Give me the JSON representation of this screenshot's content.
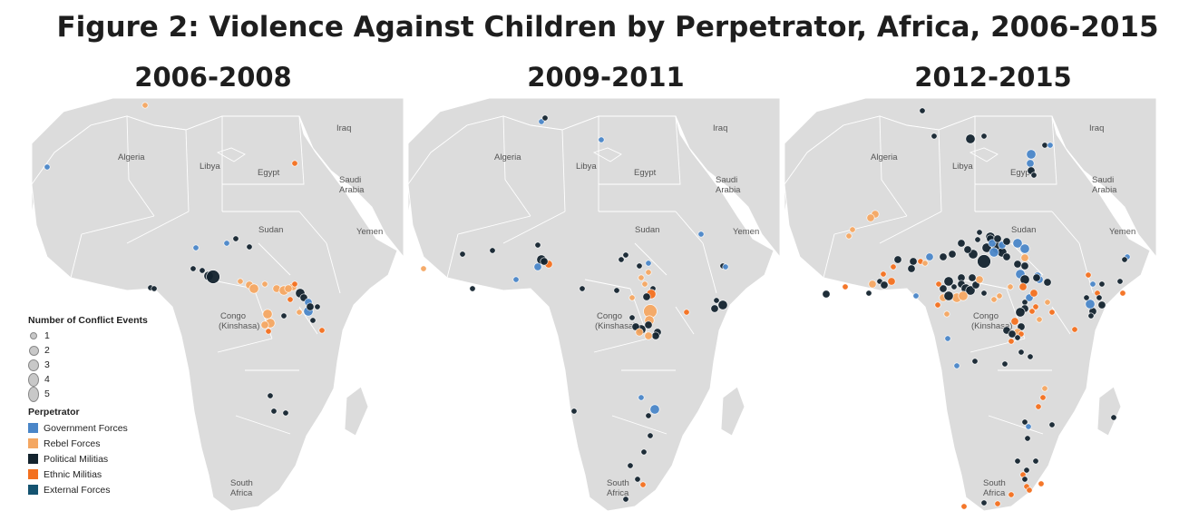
{
  "title": "Figure 2: Violence Against Children by Perpetrator, Africa, 2006-2015",
  "panels": [
    {
      "label": "2006-2008"
    },
    {
      "label": "2009-2011"
    },
    {
      "label": "2012-2015"
    }
  ],
  "map_labels": {
    "algeria": "Algeria",
    "libya": "Libya",
    "egypt": "Egypt",
    "iraq": "Iraq",
    "saudi1": "Saudi",
    "saudi2": "Arabia",
    "sudan": "Sudan",
    "yemen": "Yemen",
    "congo1": "Congo",
    "congo2": "(Kinshasa)",
    "southafrica1": "South",
    "southafrica2": "Africa"
  },
  "legend": {
    "size_title": "Number of Conflict Events",
    "sizes": [
      {
        "label": "1"
      },
      {
        "label": "2"
      },
      {
        "label": "3"
      },
      {
        "label": "4"
      },
      {
        "label": "5"
      }
    ],
    "perp_title": "Perpetrator",
    "perpetrators": [
      {
        "key": "gov",
        "label": "Government Forces",
        "color": "#4a86c8"
      },
      {
        "key": "reb",
        "label": "Rebel Forces",
        "color": "#f4a762"
      },
      {
        "key": "pol",
        "label": "Political Militias",
        "color": "#13232e"
      },
      {
        "key": "eth",
        "label": "Ethnic Militias",
        "color": "#f3701f"
      },
      {
        "key": "ext",
        "label": "External Forces",
        "color": "#145370"
      }
    ]
  },
  "points": [
    [
      [
        130,
        8,
        "reb",
        1
      ],
      [
        22,
        76,
        "gov",
        1
      ],
      [
        295,
        72,
        "eth",
        1
      ],
      [
        186,
        165,
        "gov",
        1
      ],
      [
        220,
        160,
        "gov",
        1
      ],
      [
        230,
        155,
        "pol",
        1
      ],
      [
        245,
        164,
        "pol",
        1
      ],
      [
        183,
        188,
        "pol",
        1
      ],
      [
        193,
        190,
        "pol",
        1
      ],
      [
        200,
        196,
        "pol",
        3
      ],
      [
        205,
        197,
        "pol",
        5
      ],
      [
        136,
        209,
        "pol",
        1
      ],
      [
        140,
        210,
        "pol",
        1
      ],
      [
        235,
        202,
        "reb",
        1
      ],
      [
        245,
        206,
        "reb",
        2
      ],
      [
        250,
        210,
        "reb",
        3
      ],
      [
        262,
        205,
        "reb",
        1
      ],
      [
        275,
        210,
        "reb",
        2
      ],
      [
        283,
        212,
        "reb",
        3
      ],
      [
        293,
        208,
        "reb",
        2
      ],
      [
        288,
        210,
        "reb",
        2
      ],
      [
        301,
        215,
        "pol",
        3
      ],
      [
        305,
        220,
        "pol",
        2
      ],
      [
        310,
        225,
        "gov",
        2
      ],
      [
        315,
        245,
        "pol",
        1
      ],
      [
        310,
        235,
        "gov",
        3
      ],
      [
        300,
        236,
        "reb",
        1
      ],
      [
        312,
        230,
        "pol",
        2
      ],
      [
        295,
        205,
        "eth",
        1
      ],
      [
        290,
        222,
        "eth",
        1
      ],
      [
        265,
        238,
        "reb",
        3
      ],
      [
        268,
        248,
        "reb",
        3
      ],
      [
        262,
        250,
        "reb",
        2
      ],
      [
        283,
        240,
        "pol",
        1
      ],
      [
        325,
        256,
        "eth",
        1
      ],
      [
        320,
        230,
        "pol",
        1
      ],
      [
        268,
        328,
        "pol",
        1
      ],
      [
        272,
        345,
        "pol",
        1
      ],
      [
        285,
        347,
        "pol",
        1
      ],
      [
        266,
        257,
        "eth",
        1
      ]
    ],
    [
      [
        152,
        26,
        "gov",
        1
      ],
      [
        218,
        46,
        "gov",
        1
      ],
      [
        65,
        172,
        "pol",
        1
      ],
      [
        98,
        168,
        "pol",
        1
      ],
      [
        148,
        162,
        "pol",
        1
      ],
      [
        152,
        178,
        "pol",
        3
      ],
      [
        148,
        186,
        "gov",
        2
      ],
      [
        160,
        183,
        "eth",
        2
      ],
      [
        155,
        180,
        "pol",
        2
      ],
      [
        124,
        200,
        "gov",
        1
      ],
      [
        22,
        188,
        "reb",
        1
      ],
      [
        76,
        210,
        "pol",
        1
      ],
      [
        245,
        173,
        "pol",
        1
      ],
      [
        240,
        178,
        "pol",
        1
      ],
      [
        260,
        185,
        "pol",
        1
      ],
      [
        270,
        182,
        "gov",
        1
      ],
      [
        328,
        150,
        "gov",
        1
      ],
      [
        352,
        185,
        "pol",
        1
      ],
      [
        355,
        186,
        "gov",
        1
      ],
      [
        262,
        198,
        "reb",
        1
      ],
      [
        270,
        192,
        "reb",
        1
      ],
      [
        266,
        205,
        "reb",
        1
      ],
      [
        275,
        210,
        "pol",
        1
      ],
      [
        273,
        216,
        "eth",
        3
      ],
      [
        268,
        219,
        "pol",
        2
      ],
      [
        252,
        220,
        "reb",
        1
      ],
      [
        235,
        212,
        "pol",
        1
      ],
      [
        197,
        210,
        "pol",
        1
      ],
      [
        272,
        235,
        "reb",
        5
      ],
      [
        271,
        245,
        "reb",
        3
      ],
      [
        270,
        250,
        "pol",
        2
      ],
      [
        262,
        255,
        "pol",
        3
      ],
      [
        256,
        252,
        "pol",
        2
      ],
      [
        280,
        258,
        "pol",
        2
      ],
      [
        278,
        262,
        "pol",
        2
      ],
      [
        270,
        262,
        "reb",
        2
      ],
      [
        260,
        258,
        "reb",
        2
      ],
      [
        252,
        242,
        "pol",
        1
      ],
      [
        312,
        236,
        "eth",
        1
      ],
      [
        343,
        232,
        "pol",
        2
      ],
      [
        352,
        228,
        "pol",
        3
      ],
      [
        345,
        223,
        "pol",
        1
      ],
      [
        262,
        330,
        "gov",
        1
      ],
      [
        277,
        343,
        "gov",
        3
      ],
      [
        270,
        350,
        "pol",
        1
      ],
      [
        272,
        372,
        "pol",
        1
      ],
      [
        188,
        345,
        "pol",
        1
      ],
      [
        265,
        390,
        "pol",
        1
      ],
      [
        250,
        405,
        "pol",
        1
      ],
      [
        258,
        420,
        "pol",
        1
      ],
      [
        264,
        426,
        "eth",
        1
      ],
      [
        245,
        442,
        "pol",
        1
      ],
      [
        156,
        22,
        "pol",
        1
      ]
    ],
    [
      [
        157,
        14,
        "pol",
        1
      ],
      [
        170,
        42,
        "pol",
        1
      ],
      [
        210,
        45,
        "pol",
        3
      ],
      [
        225,
        42,
        "pol",
        1
      ],
      [
        292,
        52,
        "pol",
        1
      ],
      [
        277,
        62,
        "gov",
        3
      ],
      [
        276,
        72,
        "gov",
        2
      ],
      [
        277,
        80,
        "pol",
        2
      ],
      [
        280,
        85,
        "pol",
        1
      ],
      [
        298,
        52,
        "gov",
        1
      ],
      [
        105,
        128,
        "reb",
        2
      ],
      [
        100,
        132,
        "reb",
        2
      ],
      [
        80,
        145,
        "reb",
        1
      ],
      [
        76,
        152,
        "reb",
        1
      ],
      [
        220,
        148,
        "pol",
        1
      ],
      [
        232,
        153,
        "pol",
        3
      ],
      [
        218,
        156,
        "pol",
        1
      ],
      [
        228,
        165,
        "pol",
        3
      ],
      [
        240,
        165,
        "pol",
        4
      ],
      [
        245,
        170,
        "pol",
        3
      ],
      [
        225,
        180,
        "pol",
        5
      ],
      [
        213,
        172,
        "pol",
        3
      ],
      [
        207,
        167,
        "pol",
        2
      ],
      [
        200,
        160,
        "pol",
        2
      ],
      [
        190,
        172,
        "pol",
        2
      ],
      [
        180,
        175,
        "pol",
        2
      ],
      [
        165,
        175,
        "gov",
        2
      ],
      [
        155,
        180,
        "eth",
        1
      ],
      [
        160,
        182,
        "reb",
        1
      ],
      [
        147,
        180,
        "pol",
        2
      ],
      [
        145,
        188,
        "pol",
        2
      ],
      [
        130,
        178,
        "pol",
        2
      ],
      [
        125,
        186,
        "eth",
        1
      ],
      [
        114,
        194,
        "eth",
        1
      ],
      [
        123,
        202,
        "eth",
        2
      ],
      [
        110,
        202,
        "pol",
        1
      ],
      [
        102,
        205,
        "reb",
        2
      ],
      [
        115,
        206,
        "pol",
        2
      ],
      [
        51,
        216,
        "pol",
        2
      ],
      [
        72,
        208,
        "eth",
        1
      ],
      [
        98,
        215,
        "pol",
        1
      ],
      [
        232,
        155,
        "pol",
        2
      ],
      [
        234,
        160,
        "gov",
        2
      ],
      [
        240,
        155,
        "pol",
        2
      ],
      [
        245,
        162,
        "gov",
        2
      ],
      [
        250,
        158,
        "pol",
        2
      ],
      [
        236,
        170,
        "gov",
        3
      ],
      [
        250,
        175,
        "pol",
        2
      ],
      [
        262,
        160,
        "gov",
        3
      ],
      [
        270,
        166,
        "gov",
        3
      ],
      [
        270,
        176,
        "reb",
        2
      ],
      [
        262,
        183,
        "pol",
        2
      ],
      [
        270,
        185,
        "pol",
        2
      ],
      [
        265,
        194,
        "gov",
        3
      ],
      [
        270,
        200,
        "pol",
        3
      ],
      [
        268,
        208,
        "eth",
        2
      ],
      [
        275,
        220,
        "gov",
        2
      ],
      [
        284,
        196,
        "gov",
        2
      ],
      [
        286,
        200,
        "gov",
        2
      ],
      [
        283,
        198,
        "pol",
        2
      ],
      [
        295,
        203,
        "pol",
        2
      ],
      [
        280,
        215,
        "eth",
        2
      ],
      [
        270,
        225,
        "pol",
        1
      ],
      [
        200,
        198,
        "pol",
        2
      ],
      [
        186,
        202,
        "pol",
        3
      ],
      [
        192,
        208,
        "pol",
        1
      ],
      [
        200,
        205,
        "pol",
        2
      ],
      [
        205,
        210,
        "pol",
        3
      ],
      [
        210,
        212,
        "pol",
        3
      ],
      [
        216,
        206,
        "pol",
        2
      ],
      [
        220,
        200,
        "reb",
        2
      ],
      [
        212,
        198,
        "pol",
        2
      ],
      [
        225,
        215,
        "pol",
        1
      ],
      [
        242,
        218,
        "reb",
        1
      ],
      [
        254,
        208,
        "reb",
        1
      ],
      [
        236,
        222,
        "reb",
        1
      ],
      [
        195,
        220,
        "reb",
        3
      ],
      [
        202,
        218,
        "reb",
        3
      ],
      [
        180,
        210,
        "pol",
        2
      ],
      [
        180,
        220,
        "reb",
        2
      ],
      [
        186,
        218,
        "pol",
        3
      ],
      [
        175,
        205,
        "eth",
        1
      ],
      [
        150,
        218,
        "gov",
        1
      ],
      [
        174,
        228,
        "eth",
        1
      ],
      [
        184,
        238,
        "reb",
        1
      ],
      [
        270,
        232,
        "pol",
        2
      ],
      [
        265,
        236,
        "pol",
        3
      ],
      [
        266,
        252,
        "pol",
        2
      ],
      [
        259,
        246,
        "eth",
        2
      ],
      [
        262,
        258,
        "reb",
        2
      ],
      [
        266,
        260,
        "eth",
        1
      ],
      [
        250,
        256,
        "pol",
        2
      ],
      [
        256,
        260,
        "pol",
        2
      ],
      [
        262,
        264,
        "pol",
        1
      ],
      [
        255,
        268,
        "eth",
        1
      ],
      [
        266,
        280,
        "pol",
        1
      ],
      [
        278,
        235,
        "eth",
        1
      ],
      [
        282,
        230,
        "eth",
        1
      ],
      [
        286,
        244,
        "reb",
        1
      ],
      [
        300,
        236,
        "eth",
        1
      ],
      [
        295,
        225,
        "reb",
        1
      ],
      [
        340,
        195,
        "eth",
        1
      ],
      [
        345,
        205,
        "gov",
        1
      ],
      [
        350,
        215,
        "eth",
        1
      ],
      [
        352,
        220,
        "pol",
        1
      ],
      [
        355,
        228,
        "pol",
        2
      ],
      [
        345,
        235,
        "pol",
        2
      ],
      [
        342,
        227,
        "gov",
        3
      ],
      [
        325,
        255,
        "eth",
        1
      ],
      [
        338,
        220,
        "pol",
        1
      ],
      [
        343,
        240,
        "pol",
        1
      ],
      [
        355,
        205,
        "pol",
        1
      ],
      [
        375,
        202,
        "pol",
        1
      ],
      [
        378,
        215,
        "eth",
        1
      ],
      [
        383,
        175,
        "gov",
        1
      ],
      [
        380,
        178,
        "pol",
        1
      ],
      [
        185,
        265,
        "gov",
        1
      ],
      [
        195,
        295,
        "gov",
        1
      ],
      [
        215,
        290,
        "pol",
        1
      ],
      [
        248,
        293,
        "pol",
        1
      ],
      [
        276,
        285,
        "pol",
        1
      ],
      [
        292,
        320,
        "reb",
        1
      ],
      [
        290,
        330,
        "eth",
        1
      ],
      [
        285,
        340,
        "eth",
        1
      ],
      [
        270,
        357,
        "pol",
        1
      ],
      [
        274,
        362,
        "gov",
        1
      ],
      [
        300,
        360,
        "pol",
        1
      ],
      [
        273,
        375,
        "pol",
        1
      ],
      [
        282,
        400,
        "pol",
        1
      ],
      [
        262,
        400,
        "pol",
        1
      ],
      [
        272,
        410,
        "pol",
        1
      ],
      [
        268,
        415,
        "eth",
        1
      ],
      [
        270,
        420,
        "pol",
        1
      ],
      [
        272,
        428,
        "eth",
        1
      ],
      [
        275,
        432,
        "eth",
        1
      ],
      [
        255,
        437,
        "eth",
        1
      ],
      [
        240,
        447,
        "eth",
        1
      ],
      [
        203,
        450,
        "eth",
        1
      ],
      [
        225,
        446,
        "pol",
        1
      ],
      [
        368,
        352,
        "pol",
        1
      ],
      [
        288,
        425,
        "eth",
        1
      ]
    ]
  ]
}
